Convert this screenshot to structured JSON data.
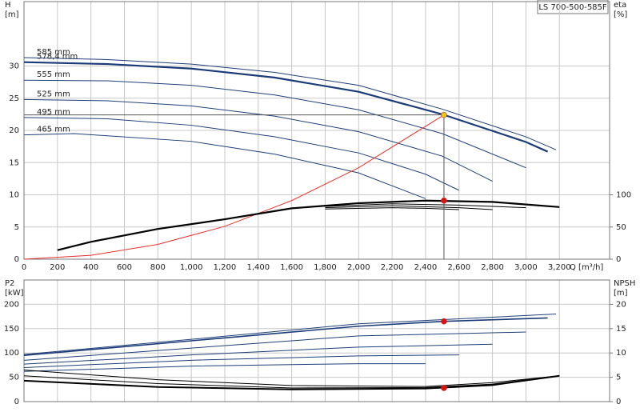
{
  "label_box": "LS 700-500-585F",
  "chart_data": [
    {
      "type": "line",
      "y_label": "H",
      "y_unit": "[m]",
      "y2_label": "eta",
      "y2_unit": "[%]",
      "x_label": "Q [m³/h]",
      "xlim": [
        0,
        3500
      ],
      "xticks": [
        0,
        200,
        400,
        600,
        800,
        {
          "value": 1000,
          "label": "1,000"
        },
        {
          "value": 1200,
          "label": "1,200"
        },
        {
          "value": 1400,
          "label": "1,400"
        },
        {
          "value": 1600,
          "label": "1,600"
        },
        {
          "value": 1800,
          "label": "1,800"
        },
        {
          "value": 2000,
          "label": "2,000"
        },
        {
          "value": 2200,
          "label": "2,200"
        },
        {
          "value": 2400,
          "label": "2,400"
        },
        {
          "value": 2600,
          "label": "2,600"
        },
        {
          "value": 2800,
          "label": "2,800"
        },
        {
          "value": 3000,
          "label": "3,000"
        },
        {
          "value": 3200,
          "label": "3,200"
        }
      ],
      "ylim": [
        0,
        40
      ],
      "yticks": [
        0,
        5,
        10,
        15,
        20,
        25,
        30
      ],
      "y2lim": [
        0,
        400
      ],
      "y2ticks": [
        0,
        50,
        100
      ],
      "grid": true,
      "series": [
        {
          "name": "585 mm",
          "color": "#1f3f7a",
          "x": [
            0,
            500,
            1000,
            1500,
            2000,
            2500,
            3000,
            3180
          ],
          "values": [
            31.3,
            31.0,
            30.3,
            29.0,
            27.0,
            23.3,
            19.0,
            17.0
          ]
        },
        {
          "name": "578,4 mm",
          "color": "#1a3a78",
          "width": 2.2,
          "x": [
            0,
            500,
            1000,
            1500,
            2000,
            2500,
            3000,
            3130
          ],
          "values": [
            30.6,
            30.3,
            29.6,
            28.2,
            26.0,
            22.5,
            18.2,
            16.7
          ]
        },
        {
          "name": "555 mm",
          "color": "#1f3f7a",
          "x": [
            0,
            500,
            1000,
            1500,
            2000,
            2500,
            3000
          ],
          "values": [
            27.8,
            27.7,
            27.0,
            25.5,
            23.2,
            19.5,
            14.2
          ]
        },
        {
          "name": "525 mm",
          "color": "#1f3f7a",
          "x": [
            0,
            500,
            1000,
            1500,
            2000,
            2500,
            2800
          ],
          "values": [
            24.8,
            24.6,
            23.8,
            22.2,
            19.8,
            16.0,
            12.1
          ]
        },
        {
          "name": "495 mm",
          "color": "#1f3f7a",
          "x": [
            0,
            500,
            1000,
            1500,
            2000,
            2400,
            2600
          ],
          "values": [
            22.0,
            21.8,
            20.8,
            19.0,
            16.5,
            13.2,
            10.7
          ]
        },
        {
          "name": "465 mm",
          "color": "#1f3f7a",
          "x": [
            0,
            300,
            1000,
            1500,
            2000,
            2400
          ],
          "values": [
            19.3,
            19.5,
            18.3,
            16.3,
            13.4,
            9.4
          ]
        },
        {
          "color": "#e8302a",
          "x": [
            0,
            400,
            800,
            1200,
            1600,
            2000,
            2510
          ],
          "values": [
            0,
            0.6,
            2.3,
            5.1,
            9.1,
            14.2,
            22.4
          ]
        },
        {
          "color": "#000000",
          "axis": "y2",
          "width": 2.2,
          "x": [
            200,
            400,
            800,
            1200,
            1600,
            2000,
            2400,
            2800,
            3200
          ],
          "values": [
            14,
            27,
            47,
            62,
            79,
            87,
            91,
            89,
            81
          ]
        },
        {
          "color": "#000000",
          "axis": "y2",
          "x": [
            1800,
            2200,
            2600,
            3000
          ],
          "values": [
            82,
            86,
            84,
            80
          ]
        },
        {
          "color": "#000000",
          "axis": "y2",
          "x": [
            1800,
            2200,
            2600,
            2800
          ],
          "values": [
            80,
            83,
            80,
            77
          ]
        },
        {
          "color": "#000000",
          "axis": "y2",
          "x": [
            1800,
            2200,
            2400,
            2600
          ],
          "values": [
            78,
            80,
            79,
            77
          ]
        }
      ],
      "points": [
        {
          "x": 2510,
          "y": 22.4,
          "color": "#f5c518",
          "guide": true
        },
        {
          "x": 2510,
          "y": 91,
          "axis": "y2",
          "color": "#e01010"
        }
      ]
    },
    {
      "type": "line",
      "y_label": "P2",
      "y_unit": "[kW]",
      "y2_label": "NPSH",
      "y2_unit": "[m]",
      "ylim": [
        0,
        250
      ],
      "yticks": [
        0,
        50,
        100,
        150,
        200
      ],
      "y2lim": [
        0,
        25
      ],
      "y2ticks": [
        0,
        5,
        10,
        15,
        20
      ],
      "grid": true,
      "series": [
        {
          "color": "#1f3f7a",
          "x": [
            0,
            1000,
            2000,
            3180
          ],
          "values": [
            97,
            128,
            160,
            180
          ]
        },
        {
          "color": "#1a3a78",
          "width": 1.6,
          "x": [
            0,
            1000,
            2000,
            2510,
            3130
          ],
          "values": [
            95,
            125,
            155,
            165,
            172
          ]
        },
        {
          "color": "#1f3f7a",
          "x": [
            0,
            1000,
            2000,
            3000
          ],
          "values": [
            85,
            110,
            135,
            143
          ]
        },
        {
          "color": "#1f3f7a",
          "x": [
            0,
            1000,
            2000,
            2800
          ],
          "values": [
            77,
            96,
            112,
            118
          ]
        },
        {
          "color": "#1f3f7a",
          "x": [
            0,
            1000,
            2000,
            2600
          ],
          "values": [
            70,
            85,
            94,
            96
          ]
        },
        {
          "color": "#1f3f7a",
          "x": [
            0,
            1000,
            2000,
            2400
          ],
          "values": [
            62,
            73,
            78,
            78
          ]
        },
        {
          "color": "#000000",
          "axis": "y2",
          "x": [
            0,
            800,
            1600,
            2400,
            2800,
            3200
          ],
          "values": [
            6.5,
            4.5,
            3.3,
            3.1,
            3.9,
            5.3
          ]
        },
        {
          "color": "#000000",
          "axis": "y2",
          "x": [
            0,
            800,
            1600,
            2400,
            2800,
            3200
          ],
          "values": [
            5.3,
            3.7,
            2.8,
            2.9,
            3.6,
            5.3
          ]
        },
        {
          "color": "#000000",
          "axis": "y2",
          "width": 2,
          "x": [
            0,
            800,
            1600,
            2400,
            2800,
            3200
          ],
          "values": [
            4.3,
            3.0,
            2.5,
            2.7,
            3.4,
            5.3
          ]
        }
      ],
      "points": [
        {
          "x": 2510,
          "y": 165,
          "color": "#e01010"
        },
        {
          "x": 2510,
          "y": 2.8,
          "axis": "y2",
          "color": "#e01010"
        }
      ]
    }
  ]
}
